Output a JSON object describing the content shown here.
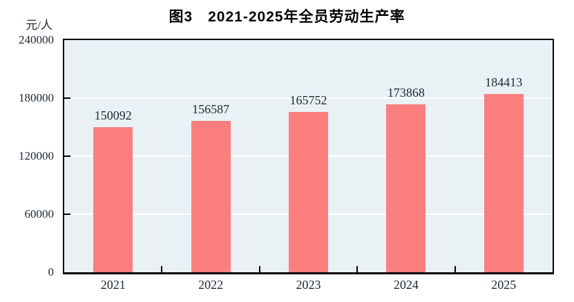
{
  "chart_data": {
    "type": "bar",
    "title": "图3　2021-2025年全员劳动生产率",
    "unit": "元/人",
    "categories": [
      "2021",
      "2022",
      "2023",
      "2024",
      "2025"
    ],
    "values": [
      150092,
      156587,
      165752,
      173868,
      184413
    ],
    "ylim": [
      0,
      240000
    ],
    "yticks": [
      0,
      60000,
      120000,
      180000,
      240000
    ],
    "grid": "horizontal white lines at interior yticks",
    "legend": "none",
    "colors": {
      "bar_fill": "#fb7e7e",
      "plot_background": "#e9f1f5",
      "gridline": "#ffffff",
      "axis_border": "#000000",
      "text": "#1a2633",
      "title_text": "#000000",
      "page_background": "#ffffff"
    }
  }
}
